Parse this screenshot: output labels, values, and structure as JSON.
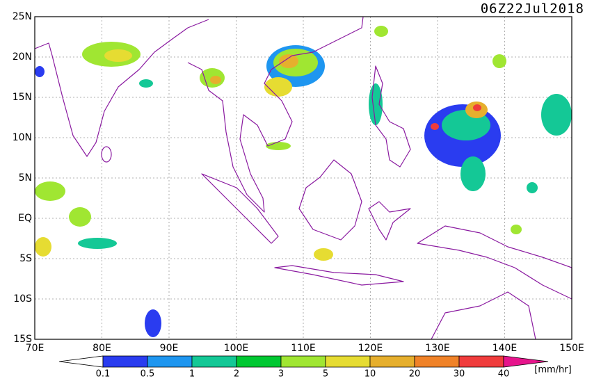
{
  "map": {
    "title": "06Z22Jul2018",
    "lon_range": [
      70,
      150
    ],
    "lat_range": [
      -15,
      25
    ],
    "xticks": [
      {
        "value": 70,
        "label": "70E"
      },
      {
        "value": 80,
        "label": "80E"
      },
      {
        "value": 90,
        "label": "90E"
      },
      {
        "value": 100,
        "label": "100E"
      },
      {
        "value": 110,
        "label": "110E"
      },
      {
        "value": 120,
        "label": "120E"
      },
      {
        "value": 130,
        "label": "130E"
      },
      {
        "value": 140,
        "label": "140E"
      },
      {
        "value": 150,
        "label": "150E"
      }
    ],
    "yticks": [
      {
        "value": 25,
        "label": "25N"
      },
      {
        "value": 20,
        "label": "20N"
      },
      {
        "value": 15,
        "label": "15N"
      },
      {
        "value": 10,
        "label": "10N"
      },
      {
        "value": 5,
        "label": "5N"
      },
      {
        "value": 0,
        "label": "EQ"
      },
      {
        "value": -5,
        "label": "5S"
      },
      {
        "value": -10,
        "label": "10S"
      },
      {
        "value": -15,
        "label": "15S"
      }
    ],
    "grid": true
  },
  "colorbar": {
    "unit": "[mm/hr]",
    "levels": [
      0.1,
      0.5,
      1,
      2,
      3,
      5,
      10,
      20,
      30,
      40
    ],
    "colors": [
      "#ffffff",
      "#2a3cf0",
      "#1e96f0",
      "#14c896",
      "#00c832",
      "#a0e632",
      "#e6dc32",
      "#e6af2d",
      "#f08228",
      "#f03c3c",
      "#e6148c"
    ]
  }
}
